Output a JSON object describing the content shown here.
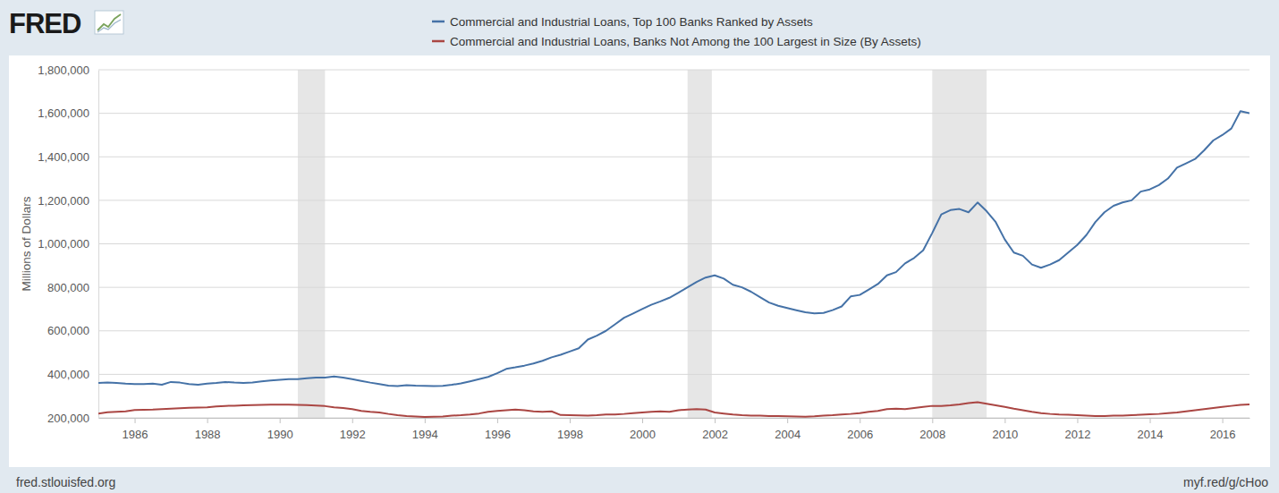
{
  "chart_data": {
    "type": "line",
    "logo": "FRED",
    "y_label": "Millions of Dollars",
    "source": "fred.stlouisfed.org",
    "link": "myf.red/g/cHoo",
    "legend": "top",
    "grid": true,
    "xlim": [
      1985,
      2016.75
    ],
    "xticks": [
      1986,
      1988,
      1990,
      1992,
      1994,
      1996,
      1998,
      2000,
      2002,
      2004,
      2006,
      2008,
      2010,
      2012,
      2014,
      2016
    ],
    "ylim": [
      200000,
      1800000
    ],
    "yticks": [
      {
        "value": 200000,
        "label": "200,000"
      },
      {
        "value": 400000,
        "label": "400,000"
      },
      {
        "value": 600000,
        "label": "600,000"
      },
      {
        "value": 800000,
        "label": "800,000"
      },
      {
        "value": 1000000,
        "label": "1,000,000"
      },
      {
        "value": 1200000,
        "label": "1,200,000"
      },
      {
        "value": 1400000,
        "label": "1,400,000"
      },
      {
        "value": 1600000,
        "label": "1,600,000"
      },
      {
        "value": 1800000,
        "label": "1,800,000"
      }
    ],
    "recessions": [
      [
        1990.5,
        1991.25
      ],
      [
        2001.25,
        2001.92
      ],
      [
        2008.0,
        2009.5
      ]
    ],
    "x": [
      1985,
      1985.25,
      1985.5,
      1985.75,
      1986,
      1986.25,
      1986.5,
      1986.75,
      1987,
      1987.25,
      1987.5,
      1987.75,
      1988,
      1988.25,
      1988.5,
      1988.75,
      1989,
      1989.25,
      1989.5,
      1989.75,
      1990,
      1990.25,
      1990.5,
      1990.75,
      1991,
      1991.25,
      1991.5,
      1991.75,
      1992,
      1992.25,
      1992.5,
      1992.75,
      1993,
      1993.25,
      1993.5,
      1993.75,
      1994,
      1994.25,
      1994.5,
      1994.75,
      1995,
      1995.25,
      1995.5,
      1995.75,
      1996,
      1996.25,
      1996.5,
      1996.75,
      1997,
      1997.25,
      1997.5,
      1997.75,
      1998,
      1998.25,
      1998.5,
      1998.75,
      1999,
      1999.25,
      1999.5,
      1999.75,
      2000,
      2000.25,
      2000.5,
      2000.75,
      2001,
      2001.25,
      2001.5,
      2001.75,
      2002,
      2002.25,
      2002.5,
      2002.75,
      2003,
      2003.25,
      2003.5,
      2003.75,
      2004,
      2004.25,
      2004.5,
      2004.75,
      2005,
      2005.25,
      2005.5,
      2005.75,
      2006,
      2006.25,
      2006.5,
      2006.75,
      2007,
      2007.25,
      2007.5,
      2007.75,
      2008,
      2008.25,
      2008.5,
      2008.75,
      2009,
      2009.25,
      2009.5,
      2009.75,
      2010,
      2010.25,
      2010.5,
      2010.75,
      2011,
      2011.25,
      2011.5,
      2011.75,
      2012,
      2012.25,
      2012.5,
      2012.75,
      2013,
      2013.25,
      2013.5,
      2013.75,
      2014,
      2014.25,
      2014.5,
      2014.75,
      2015,
      2015.25,
      2015.5,
      2015.75,
      2016,
      2016.25,
      2016.5,
      2016.75
    ],
    "series": [
      {
        "name": "Commercial and Industrial Loans, Top 100 Banks Ranked by Assets",
        "color": "#4572a7",
        "values": [
          360000,
          362000,
          360000,
          357000,
          355000,
          355000,
          357000,
          352000,
          365000,
          362000,
          355000,
          352000,
          357000,
          360000,
          365000,
          362000,
          360000,
          362000,
          368000,
          372000,
          375000,
          378000,
          378000,
          382000,
          385000,
          385000,
          390000,
          385000,
          378000,
          370000,
          362000,
          355000,
          348000,
          346000,
          350000,
          348000,
          347000,
          346000,
          347000,
          352000,
          358000,
          368000,
          378000,
          388000,
          405000,
          425000,
          432000,
          440000,
          450000,
          462000,
          478000,
          490000,
          505000,
          520000,
          560000,
          578000,
          600000,
          630000,
          660000,
          680000,
          700000,
          720000,
          735000,
          752000,
          775000,
          800000,
          825000,
          845000,
          855000,
          840000,
          812000,
          800000,
          780000,
          755000,
          730000,
          715000,
          705000,
          695000,
          685000,
          680000,
          682000,
          695000,
          712000,
          758000,
          765000,
          790000,
          815000,
          855000,
          870000,
          910000,
          935000,
          970000,
          1050000,
          1135000,
          1155000,
          1160000,
          1145000,
          1190000,
          1150000,
          1100000,
          1020000,
          960000,
          945000,
          905000,
          890000,
          905000,
          925000,
          960000,
          995000,
          1040000,
          1100000,
          1145000,
          1175000,
          1190000,
          1200000,
          1240000,
          1250000,
          1270000,
          1300000,
          1350000,
          1370000,
          1390000,
          1430000,
          1475000,
          1500000,
          1530000,
          1610000,
          1600000
        ]
      },
      {
        "name": "Commercial and Industrial Loans, Banks Not Among the 100 Largest in Size (By Assets)",
        "color": "#aa4643",
        "values": [
          220000,
          226000,
          228000,
          230000,
          236000,
          237000,
          238000,
          240000,
          242000,
          244000,
          246000,
          247000,
          248000,
          252000,
          255000,
          256000,
          258000,
          259000,
          260000,
          261000,
          261000,
          261000,
          260000,
          259000,
          257000,
          254000,
          248000,
          245000,
          240000,
          232000,
          228000,
          225000,
          218000,
          212000,
          208000,
          206000,
          204000,
          205000,
          206000,
          210000,
          212000,
          215000,
          220000,
          228000,
          232000,
          235000,
          238000,
          235000,
          230000,
          228000,
          230000,
          213000,
          212000,
          211000,
          210000,
          212000,
          215000,
          215000,
          218000,
          222000,
          225000,
          228000,
          230000,
          228000,
          235000,
          238000,
          240000,
          238000,
          225000,
          220000,
          215000,
          212000,
          210000,
          210000,
          208000,
          208000,
          207000,
          206000,
          205000,
          207000,
          210000,
          212000,
          215000,
          218000,
          222000,
          228000,
          232000,
          240000,
          242000,
          240000,
          245000,
          250000,
          255000,
          255000,
          258000,
          262000,
          268000,
          272000,
          265000,
          258000,
          250000,
          242000,
          235000,
          228000,
          222000,
          218000,
          215000,
          214000,
          212000,
          210000,
          208000,
          208000,
          210000,
          210000,
          212000,
          214000,
          216000,
          218000,
          222000,
          225000,
          230000,
          235000,
          240000,
          245000,
          250000,
          255000,
          260000,
          262000
        ]
      }
    ]
  }
}
